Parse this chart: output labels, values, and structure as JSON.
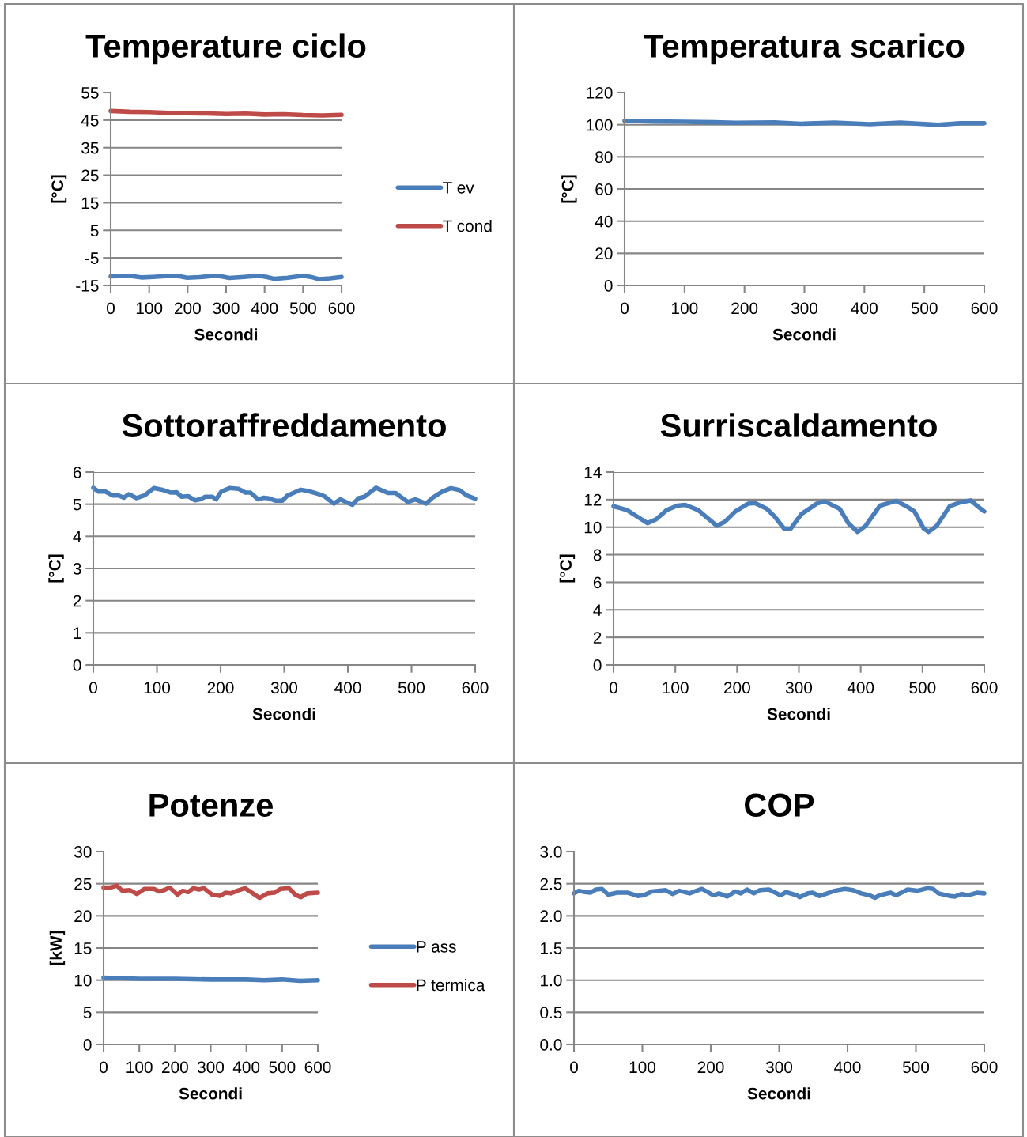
{
  "chart_data": [
    {
      "type": "line",
      "title": "Temperature ciclo",
      "xlabel": "Secondi",
      "ylabel": "[°C]",
      "xlim": [
        0,
        600
      ],
      "xticks": [
        0,
        100,
        200,
        300,
        400,
        500,
        600
      ],
      "ylim": [
        -15,
        55
      ],
      "yticks": [
        -15,
        -5,
        5,
        15,
        25,
        35,
        45,
        55
      ],
      "grid": "y",
      "legend": "right",
      "series": [
        {
          "name": "T ev",
          "color": "#4a7ebb",
          "x": [
            0,
            20,
            41,
            60,
            82,
            110,
            158,
            180,
            199,
            230,
            271,
            290,
            308,
            340,
            384,
            405,
            425,
            460,
            500,
            520,
            541,
            570,
            600
          ],
          "values": [
            -11.7,
            -11.6,
            -11.5,
            -11.7,
            -12.1,
            -11.9,
            -11.5,
            -11.7,
            -12.2,
            -12.0,
            -11.5,
            -11.8,
            -12.3,
            -12.0,
            -11.5,
            -11.9,
            -12.6,
            -12.2,
            -11.5,
            -11.9,
            -12.7,
            -12.4,
            -11.9
          ]
        },
        {
          "name": "T cond",
          "color": "#be4b48",
          "x": [
            0,
            50,
            100,
            150,
            200,
            250,
            300,
            350,
            400,
            450,
            500,
            550,
            600
          ],
          "values": [
            48.3,
            48.0,
            47.9,
            47.6,
            47.5,
            47.4,
            47.2,
            47.3,
            47.0,
            47.1,
            46.8,
            46.7,
            46.9
          ]
        }
      ]
    },
    {
      "type": "line",
      "title": "Temperatura scarico",
      "xlabel": "Secondi",
      "ylabel": "[°C]",
      "xlim": [
        0,
        600
      ],
      "xticks": [
        0,
        100,
        200,
        300,
        400,
        500,
        600
      ],
      "ylim": [
        0,
        120
      ],
      "yticks": [
        0,
        20,
        40,
        60,
        80,
        100,
        120
      ],
      "grid": "y",
      "series": [
        {
          "color": "#4a7ebb",
          "x": [
            0,
            50,
            100,
            150,
            185,
            250,
            295,
            350,
            409,
            460,
            523,
            560,
            600
          ],
          "values": [
            102.4,
            102.0,
            101.8,
            101.5,
            101.2,
            101.4,
            100.6,
            101.3,
            100.3,
            101.3,
            99.9,
            100.9,
            100.9
          ]
        }
      ]
    },
    {
      "type": "line",
      "title": "Sottoraffreddamento",
      "xlabel": "Secondi",
      "ylabel": "[°C]",
      "xlim": [
        0,
        600
      ],
      "xticks": [
        0,
        100,
        200,
        300,
        400,
        500,
        600
      ],
      "ylim": [
        0,
        6
      ],
      "yticks": [
        0,
        1,
        2,
        3,
        4,
        5,
        6
      ],
      "grid": "y",
      "series": [
        {
          "color": "#4a7ebb",
          "x": [
            0,
            8,
            19,
            31,
            40,
            48,
            56,
            68,
            81,
            95,
            110,
            122,
            131,
            139,
            149,
            160,
            168,
            176,
            187,
            193,
            201,
            214,
            228,
            239,
            247,
            259,
            268,
            276,
            286,
            297,
            305,
            326,
            338,
            355,
            363,
            378,
            388,
            407,
            417,
            426,
            444,
            463,
            475,
            494,
            506,
            523,
            533,
            548,
            562,
            575,
            587,
            600
          ],
          "values": [
            5.51,
            5.39,
            5.39,
            5.27,
            5.27,
            5.2,
            5.31,
            5.19,
            5.28,
            5.5,
            5.44,
            5.36,
            5.37,
            5.23,
            5.25,
            5.12,
            5.15,
            5.23,
            5.23,
            5.15,
            5.39,
            5.5,
            5.48,
            5.36,
            5.36,
            5.15,
            5.2,
            5.18,
            5.11,
            5.11,
            5.27,
            5.45,
            5.41,
            5.31,
            5.25,
            5.02,
            5.15,
            4.98,
            5.19,
            5.23,
            5.51,
            5.35,
            5.35,
            5.07,
            5.15,
            5.02,
            5.2,
            5.39,
            5.5,
            5.44,
            5.27,
            5.17
          ]
        }
      ]
    },
    {
      "type": "line",
      "title": "Surriscaldamento",
      "xlabel": "Secondi",
      "ylabel": "[°C]",
      "xlim": [
        0,
        600
      ],
      "xticks": [
        0,
        100,
        200,
        300,
        400,
        500,
        600
      ],
      "ylim": [
        0,
        14
      ],
      "yticks": [
        0,
        2,
        4,
        6,
        8,
        10,
        12,
        14
      ],
      "grid": "y",
      "series": [
        {
          "color": "#4a7ebb",
          "x": [
            0,
            22,
            35,
            55,
            69,
            86,
            103,
            116,
            137,
            152,
            167,
            180,
            197,
            218,
            229,
            248,
            261,
            276,
            287,
            304,
            329,
            342,
            366,
            380,
            395,
            408,
            431,
            457,
            474,
            487,
            502,
            510,
            523,
            544,
            562,
            578,
            589,
            600
          ],
          "values": [
            11.52,
            11.24,
            10.86,
            10.29,
            10.57,
            11.24,
            11.56,
            11.62,
            11.24,
            10.67,
            10.1,
            10.38,
            11.14,
            11.71,
            11.75,
            11.33,
            10.76,
            9.9,
            9.9,
            10.95,
            11.71,
            11.87,
            11.33,
            10.29,
            9.66,
            10.1,
            11.56,
            11.9,
            11.52,
            11.14,
            9.9,
            9.66,
            10.1,
            11.52,
            11.81,
            11.94,
            11.52,
            11.14
          ]
        }
      ]
    },
    {
      "type": "line",
      "title": "Potenze",
      "xlabel": "Secondi",
      "ylabel": "[kW]",
      "xlim": [
        0,
        600
      ],
      "xticks": [
        0,
        100,
        200,
        300,
        400,
        500,
        600
      ],
      "ylim": [
        0,
        30
      ],
      "yticks": [
        0,
        5,
        10,
        15,
        20,
        25,
        30
      ],
      "grid": "y",
      "legend": "right",
      "series": [
        {
          "name": "P ass",
          "color": "#4a7ebb",
          "x": [
            0,
            100,
            200,
            300,
            400,
            450,
            500,
            550,
            600
          ],
          "values": [
            10.4,
            10.2,
            10.2,
            10.1,
            10.1,
            10.0,
            10.1,
            9.9,
            10.0
          ]
        },
        {
          "name": "P termica",
          "color": "#be4b48",
          "x": [
            0,
            19,
            37,
            52,
            74,
            93,
            115,
            141,
            156,
            170,
            185,
            207,
            222,
            237,
            252,
            267,
            281,
            304,
            326,
            341,
            356,
            374,
            396,
            415,
            437,
            459,
            478,
            496,
            519,
            537,
            552,
            570,
            600
          ],
          "values": [
            24.4,
            24.4,
            24.7,
            23.9,
            24.0,
            23.4,
            24.2,
            24.2,
            23.8,
            24.0,
            24.4,
            23.3,
            23.9,
            23.7,
            24.3,
            24.1,
            24.3,
            23.3,
            23.1,
            23.6,
            23.5,
            23.9,
            24.3,
            23.6,
            22.8,
            23.5,
            23.6,
            24.2,
            24.3,
            23.3,
            22.9,
            23.5,
            23.6
          ]
        }
      ]
    },
    {
      "type": "line",
      "title": "COP",
      "xlabel": "Secondi",
      "xlim": [
        0,
        600
      ],
      "xticks": [
        0,
        100,
        200,
        300,
        400,
        500,
        600
      ],
      "ylim": [
        0,
        3
      ],
      "yticks": [
        {
          "value": 0,
          "label": "0.0"
        },
        {
          "value": 0.5,
          "label": "0.5"
        },
        {
          "value": 1,
          "label": "1.0"
        },
        {
          "value": 1.5,
          "label": "1.5"
        },
        {
          "value": 2,
          "label": "2.0"
        },
        {
          "value": 2.5,
          "label": "2.5"
        },
        {
          "value": 3,
          "label": "3.0"
        }
      ],
      "grid": "y",
      "series": [
        {
          "color": "#4a7ebb",
          "x": [
            0,
            7,
            16,
            24,
            32,
            41,
            50,
            63,
            79,
            93,
            102,
            114,
            134,
            144,
            154,
            169,
            187,
            204,
            212,
            224,
            236,
            244,
            253,
            263,
            272,
            285,
            302,
            310,
            326,
            330,
            342,
            349,
            359,
            373,
            381,
            396,
            408,
            420,
            432,
            440,
            447,
            463,
            471,
            488,
            502,
            517,
            525,
            533,
            549,
            557,
            567,
            576,
            589,
            600
          ],
          "values": [
            2.35,
            2.39,
            2.37,
            2.36,
            2.41,
            2.42,
            2.33,
            2.36,
            2.36,
            2.31,
            2.32,
            2.38,
            2.4,
            2.34,
            2.39,
            2.35,
            2.42,
            2.32,
            2.35,
            2.3,
            2.38,
            2.35,
            2.41,
            2.35,
            2.4,
            2.41,
            2.32,
            2.37,
            2.32,
            2.29,
            2.35,
            2.36,
            2.31,
            2.36,
            2.39,
            2.42,
            2.4,
            2.35,
            2.32,
            2.28,
            2.32,
            2.36,
            2.32,
            2.41,
            2.39,
            2.43,
            2.42,
            2.35,
            2.31,
            2.3,
            2.34,
            2.32,
            2.36,
            2.35
          ]
        }
      ]
    }
  ]
}
